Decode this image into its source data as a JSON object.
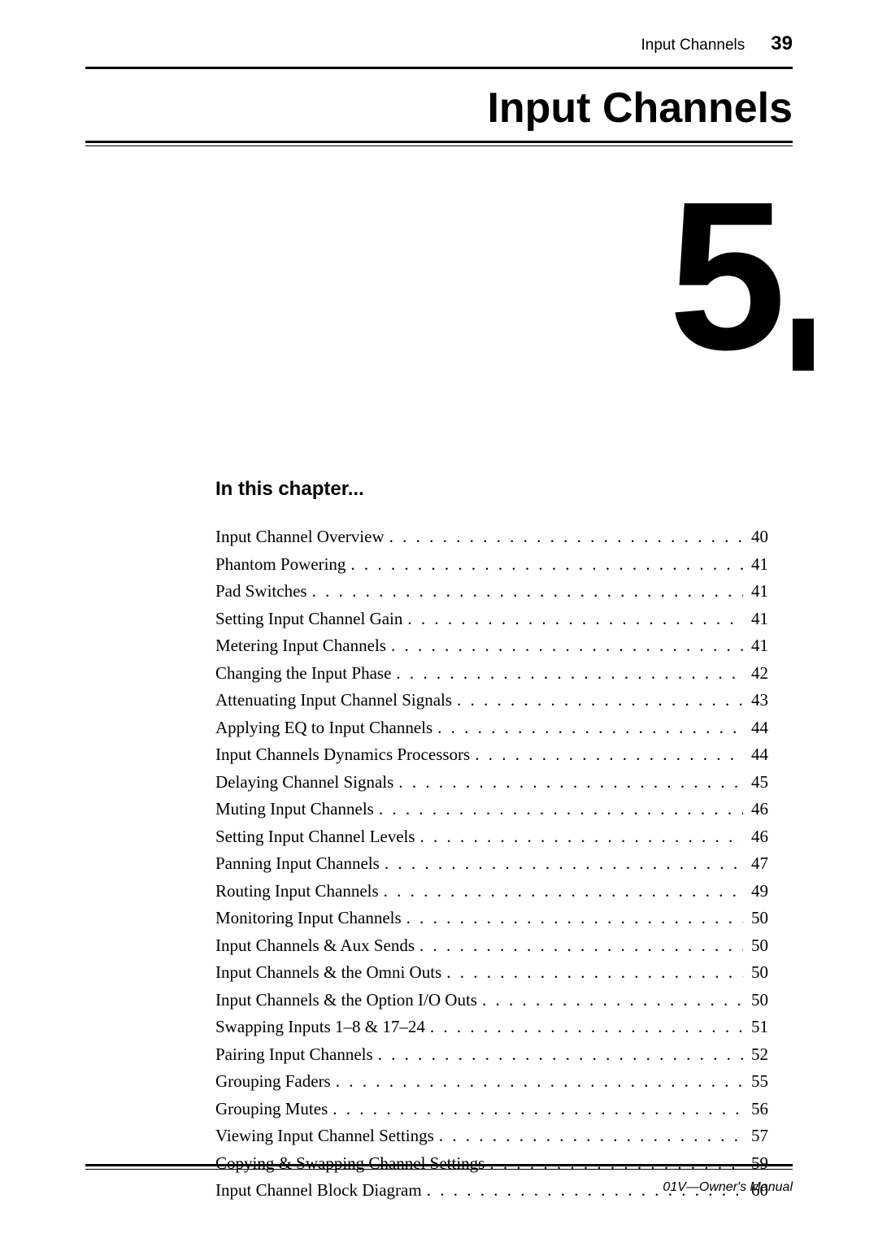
{
  "header": {
    "running_title": "Input Channels",
    "page_number": "39"
  },
  "chapter": {
    "title": "Input Channels",
    "number": "5",
    "section_heading": "In this chapter..."
  },
  "toc": [
    {
      "label": "Input Channel Overview",
      "page": "40"
    },
    {
      "label": "Phantom Powering",
      "page": "41"
    },
    {
      "label": "Pad Switches",
      "page": "41"
    },
    {
      "label": "Setting Input Channel Gain",
      "page": "41"
    },
    {
      "label": "Metering Input Channels",
      "page": "41"
    },
    {
      "label": "Changing the Input Phase",
      "page": "42"
    },
    {
      "label": "Attenuating Input Channel Signals",
      "page": "43"
    },
    {
      "label": "Applying EQ to Input Channels",
      "page": "44"
    },
    {
      "label": "Input Channels Dynamics Processors",
      "page": "44"
    },
    {
      "label": "Delaying Channel Signals",
      "page": "45"
    },
    {
      "label": "Muting Input Channels",
      "page": "46"
    },
    {
      "label": "Setting Input Channel Levels",
      "page": "46"
    },
    {
      "label": "Panning Input Channels",
      "page": "47"
    },
    {
      "label": "Routing Input Channels",
      "page": "49"
    },
    {
      "label": "Monitoring Input Channels",
      "page": "50"
    },
    {
      "label": "Input Channels & Aux Sends",
      "page": "50"
    },
    {
      "label": "Input Channels & the Omni Outs",
      "page": "50"
    },
    {
      "label": "Input Channels & the Option I/O Outs",
      "page": "50"
    },
    {
      "label": "Swapping Inputs 1–8 & 17–24",
      "page": "51"
    },
    {
      "label": "Pairing Input Channels",
      "page": "52"
    },
    {
      "label": "Grouping Faders",
      "page": "55"
    },
    {
      "label": "Grouping Mutes",
      "page": "56"
    },
    {
      "label": "Viewing Input Channel Settings",
      "page": "57"
    },
    {
      "label": "Copying & Swapping Channel Settings",
      "page": "59"
    },
    {
      "label": "Input Channel Block Diagram",
      "page": "60"
    }
  ],
  "footer": {
    "text": "01V—Owner's Manual"
  },
  "style": {
    "page_bg": "#ffffff",
    "text_color": "#000000",
    "serif_font": "Times New Roman",
    "sans_font": "Arial",
    "title_fontsize_pt": 39,
    "bignum_fontsize_pt": 195,
    "heading_fontsize_pt": 18,
    "body_fontsize_pt": 16,
    "footer_fontsize_pt": 12
  }
}
